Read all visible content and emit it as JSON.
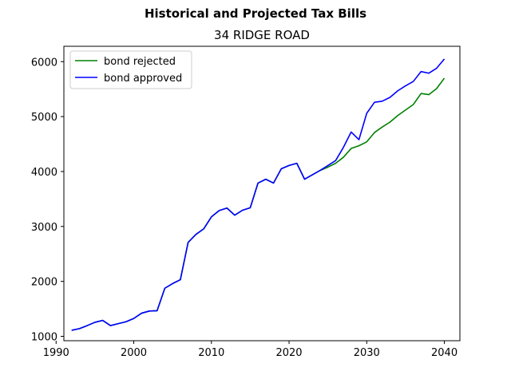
{
  "chart_data": {
    "type": "line",
    "title": "Historical and Projected Tax Bills",
    "subtitle": "34 RIDGE ROAD",
    "xlabel": "",
    "ylabel": "",
    "xlim": [
      1991,
      2042
    ],
    "ylim": [
      920,
      6280
    ],
    "xticks": [
      1990,
      2000,
      2010,
      2020,
      2030,
      2040
    ],
    "yticks": [
      1000,
      2000,
      3000,
      4000,
      5000,
      6000
    ],
    "grid": false,
    "legend_position": "top-left",
    "series": [
      {
        "name": "bond rejected",
        "color": "#008000",
        "x": [
          1992,
          1993,
          1994,
          1995,
          1996,
          1997,
          1998,
          1999,
          2000,
          2001,
          2002,
          2003,
          2004,
          2005,
          2006,
          2007,
          2008,
          2009,
          2010,
          2011,
          2012,
          2013,
          2014,
          2015,
          2016,
          2017,
          2018,
          2019,
          2020,
          2021,
          2022,
          2023,
          2024,
          2025,
          2026,
          2027,
          2028,
          2029,
          2030,
          2031,
          2032,
          2033,
          2034,
          2035,
          2036,
          2037,
          2038,
          2039,
          2040
        ],
        "values": [
          1110,
          1140,
          1195,
          1255,
          1290,
          1195,
          1230,
          1265,
          1325,
          1420,
          1460,
          1465,
          1875,
          1960,
          2030,
          2710,
          2855,
          2955,
          3175,
          3290,
          3335,
          3205,
          3295,
          3340,
          3790,
          3860,
          3790,
          4050,
          4110,
          4150,
          3860,
          3940,
          4020,
          4080,
          4150,
          4260,
          4420,
          4470,
          4540,
          4710,
          4810,
          4900,
          5020,
          5120,
          5220,
          5420,
          5400,
          5510,
          5700
        ]
      },
      {
        "name": "bond approved",
        "color": "#0000ff",
        "x": [
          1992,
          1993,
          1994,
          1995,
          1996,
          1997,
          1998,
          1999,
          2000,
          2001,
          2002,
          2003,
          2004,
          2005,
          2006,
          2007,
          2008,
          2009,
          2010,
          2011,
          2012,
          2013,
          2014,
          2015,
          2016,
          2017,
          2018,
          2019,
          2020,
          2021,
          2022,
          2023,
          2024,
          2025,
          2026,
          2027,
          2028,
          2029,
          2030,
          2031,
          2032,
          2033,
          2034,
          2035,
          2036,
          2037,
          2038,
          2039,
          2040
        ],
        "values": [
          1110,
          1140,
          1195,
          1255,
          1290,
          1195,
          1230,
          1265,
          1325,
          1420,
          1460,
          1465,
          1875,
          1960,
          2030,
          2710,
          2855,
          2955,
          3175,
          3290,
          3335,
          3205,
          3295,
          3340,
          3790,
          3860,
          3790,
          4050,
          4110,
          4150,
          3860,
          3940,
          4020,
          4110,
          4200,
          4440,
          4720,
          4580,
          5060,
          5260,
          5280,
          5350,
          5470,
          5560,
          5640,
          5820,
          5790,
          5880,
          6050
        ]
      }
    ]
  }
}
